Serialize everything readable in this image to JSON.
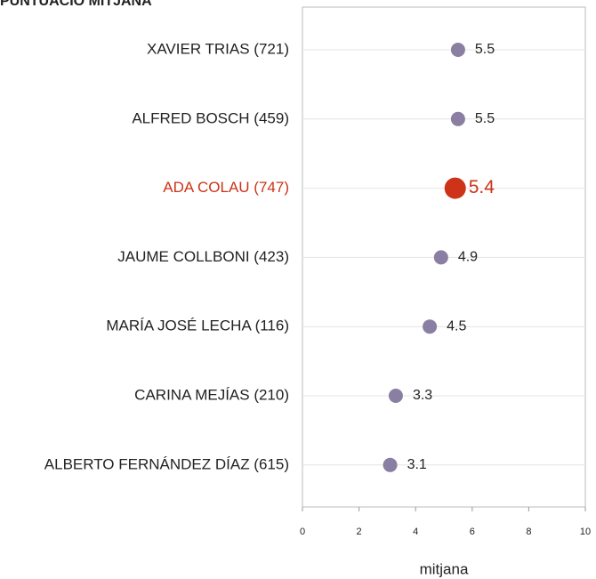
{
  "chart_data": {
    "type": "dot",
    "title": "PUNTUACIÓ MITJANA",
    "categories": [
      "XAVIER TRIAS (721)",
      "ALFRED BOSCH (459)",
      "ADA COLAU (747)",
      "JAUME COLLBONI (423)",
      "MARÍA JOSÉ LECHA (116)",
      "CARINA MEJÍAS (210)",
      "ALBERTO FERNÁNDEZ DÍAZ (615)"
    ],
    "values": [
      5.5,
      5.5,
      5.4,
      4.9,
      4.5,
      3.3,
      3.1
    ],
    "color": "#8a7ea3",
    "highlight": {
      "index": 2,
      "color": "#cc3318"
    },
    "xlabel": "mitjana",
    "xlim": [
      0,
      10
    ],
    "xticks": [
      0,
      2,
      4,
      6,
      8,
      10
    ],
    "grid": true
  }
}
